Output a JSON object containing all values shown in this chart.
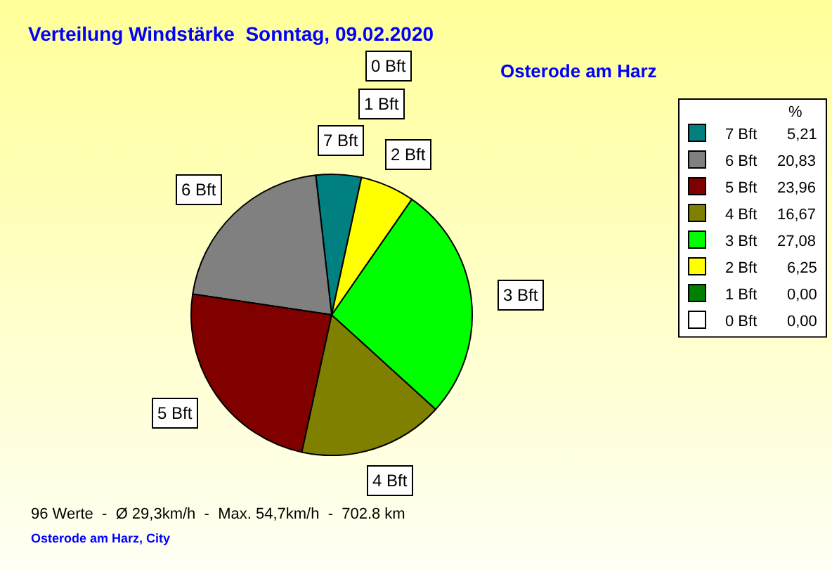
{
  "chart_data": {
    "type": "pie",
    "title": "Verteilung Windstärke  Sonntag, 09.02.2020",
    "subtitle": "Osterode am Harz",
    "legend_title": "%",
    "categories": [
      "7 Bft",
      "6 Bft",
      "5 Bft",
      "4 Bft",
      "3 Bft",
      "2 Bft",
      "1 Bft",
      "0 Bft"
    ],
    "values": [
      5.21,
      20.83,
      23.96,
      16.67,
      27.08,
      6.25,
      0,
      0
    ],
    "value_labels": [
      "5,21",
      "20,83",
      "23,96",
      "16,67",
      "27,08",
      "6,25",
      "0,00",
      "0,00"
    ],
    "colors": [
      "#008080",
      "#808080",
      "#800000",
      "#808000",
      "#00ff00",
      "#ffff00",
      "#008000",
      "#ffffff"
    ],
    "legend": "top right",
    "annotations": [
      "96 Werte  -  Ø 29,3km/h  -  Max. 54,7km/h  -  702.8 km",
      "Osterode am Harz, City"
    ]
  }
}
